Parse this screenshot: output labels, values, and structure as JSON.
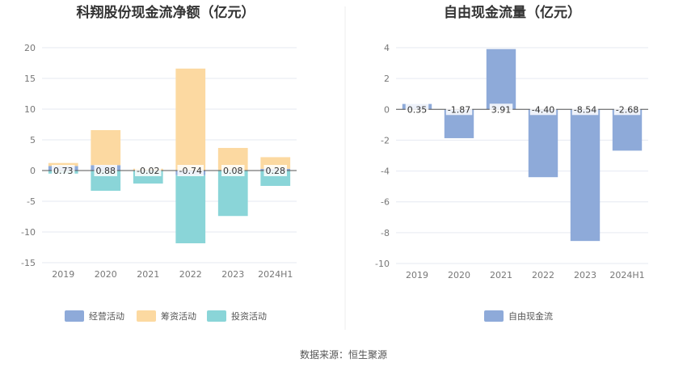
{
  "colors": {
    "operating": "#8eaad9",
    "financing": "#fcd9a1",
    "investing": "#8ad5d8",
    "fcf": "#8eaad9",
    "grid": "#e6e9f2",
    "axis": "#555555",
    "label_bg": "#ffffff"
  },
  "source": "数据来源：恒生聚源",
  "chart_data": [
    {
      "type": "bar",
      "stacked": true,
      "title": "科翔股份现金流净额（亿元）",
      "categories": [
        "2019",
        "2020",
        "2021",
        "2022",
        "2023",
        "2024H1"
      ],
      "ylim": [
        -15,
        20
      ],
      "yticks": [
        20,
        15,
        10,
        5,
        0,
        -5,
        -10,
        -15
      ],
      "grid": true,
      "legend_position": "bottom",
      "series": [
        {
          "name": "经营活动",
          "key": "operating",
          "values": [
            0.73,
            0.88,
            -0.02,
            -0.74,
            0.08,
            0.28
          ]
        },
        {
          "name": "筹资活动",
          "key": "financing",
          "values": [
            0.5,
            5.7,
            0.3,
            16.6,
            3.6,
            1.9
          ]
        },
        {
          "name": "投资活动",
          "key": "investing",
          "values": [
            -0.5,
            -3.3,
            -2.1,
            -11.1,
            -7.4,
            -2.5
          ]
        }
      ],
      "data_labels": [
        "0.73",
        "0.88",
        "-0.02",
        "-0.74",
        "0.08",
        "0.28"
      ]
    },
    {
      "type": "bar",
      "title": "自由现金流量（亿元）",
      "categories": [
        "2019",
        "2020",
        "2021",
        "2022",
        "2023",
        "2024H1"
      ],
      "ylim": [
        -10,
        4
      ],
      "yticks": [
        4,
        2,
        0,
        -2,
        -4,
        -6,
        -8,
        -10
      ],
      "grid": true,
      "legend_position": "bottom",
      "series": [
        {
          "name": "自由现金流",
          "key": "fcf",
          "values": [
            0.35,
            -1.87,
            3.91,
            -4.4,
            -8.54,
            -2.68
          ]
        }
      ],
      "data_labels": [
        "0.35",
        "-1.87",
        "3.91",
        "-4.40",
        "-8.54",
        "-2.68"
      ]
    }
  ]
}
